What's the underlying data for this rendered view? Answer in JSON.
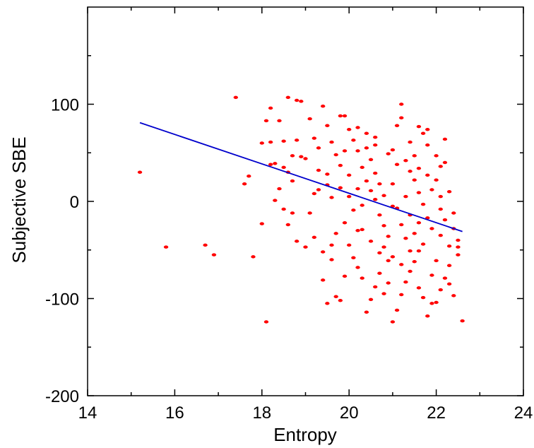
{
  "chart_data": {
    "type": "scatter",
    "title": "",
    "xlabel": "Entropy",
    "ylabel": "Subjective SBE",
    "xlim": [
      14,
      24
    ],
    "ylim": [
      -200,
      200
    ],
    "x_ticks": [
      14,
      16,
      18,
      20,
      22,
      24
    ],
    "y_ticks": [
      -200,
      -100,
      0,
      100
    ],
    "grid": false,
    "legend": "none",
    "colors": {
      "points": "#ff0000",
      "fit_line": "#0000cc",
      "axes": "#000000"
    },
    "fit_line": {
      "x": [
        15.2,
        22.6
      ],
      "y": [
        81,
        -31
      ]
    },
    "points": [
      [
        15.2,
        30
      ],
      [
        15.8,
        -47
      ],
      [
        16.7,
        -45
      ],
      [
        16.9,
        -55
      ],
      [
        17.4,
        107
      ],
      [
        17.7,
        26
      ],
      [
        17.6,
        18
      ],
      [
        17.8,
        -57
      ],
      [
        18.0,
        60
      ],
      [
        18.1,
        -124
      ],
      [
        18.2,
        96
      ],
      [
        18.3,
        39
      ],
      [
        18.3,
        1
      ],
      [
        18.4,
        83
      ],
      [
        18.5,
        62
      ],
      [
        18.6,
        107
      ],
      [
        18.7,
        47
      ],
      [
        18.8,
        104
      ],
      [
        18.9,
        103
      ],
      [
        18.1,
        83
      ],
      [
        18.2,
        61
      ],
      [
        18.5,
        35
      ],
      [
        18.6,
        30
      ],
      [
        18.7,
        -12
      ],
      [
        18.6,
        -24
      ],
      [
        18.8,
        -41
      ],
      [
        18.9,
        46
      ],
      [
        18.4,
        13
      ],
      [
        18.2,
        38
      ],
      [
        18.0,
        -23
      ],
      [
        18.7,
        21
      ],
      [
        18.5,
        -8
      ],
      [
        19.0,
        44
      ],
      [
        19.1,
        85
      ],
      [
        19.2,
        65
      ],
      [
        19.3,
        32
      ],
      [
        19.4,
        98
      ],
      [
        19.5,
        78
      ],
      [
        19.6,
        61
      ],
      [
        19.7,
        48
      ],
      [
        19.8,
        88
      ],
      [
        19.9,
        52
      ],
      [
        19.1,
        -12
      ],
      [
        19.2,
        -37
      ],
      [
        19.4,
        -81
      ],
      [
        19.5,
        -105
      ],
      [
        19.6,
        -60
      ],
      [
        19.7,
        -98
      ],
      [
        19.8,
        -102
      ],
      [
        19.9,
        -77
      ],
      [
        19.3,
        12
      ],
      [
        19.5,
        28
      ],
      [
        19.6,
        4
      ],
      [
        19.8,
        14
      ],
      [
        19.9,
        -22
      ],
      [
        19.0,
        -47
      ],
      [
        19.4,
        -52
      ],
      [
        19.7,
        -33
      ],
      [
        19.2,
        8
      ],
      [
        19.8,
        37
      ],
      [
        20.0,
        74
      ],
      [
        20.1,
        63
      ],
      [
        20.2,
        52
      ],
      [
        20.3,
        35
      ],
      [
        20.4,
        21
      ],
      [
        20.5,
        11
      ],
      [
        20.6,
        2
      ],
      [
        20.7,
        -14
      ],
      [
        20.8,
        -25
      ],
      [
        20.9,
        -36
      ],
      [
        20.0,
        -45
      ],
      [
        20.1,
        -58
      ],
      [
        20.2,
        -68
      ],
      [
        20.3,
        -79
      ],
      [
        20.4,
        -114
      ],
      [
        20.5,
        -101
      ],
      [
        20.6,
        -88
      ],
      [
        20.7,
        -74
      ],
      [
        20.8,
        -95
      ],
      [
        20.9,
        -61
      ],
      [
        20.0,
        27
      ],
      [
        20.2,
        13
      ],
      [
        20.3,
        -4
      ],
      [
        20.4,
        55
      ],
      [
        20.5,
        43
      ],
      [
        20.6,
        29
      ],
      [
        20.7,
        18
      ],
      [
        20.8,
        6
      ],
      [
        20.9,
        49
      ],
      [
        20.1,
        -9
      ],
      [
        20.3,
        -29
      ],
      [
        20.5,
        -41
      ],
      [
        20.7,
        -53
      ],
      [
        20.9,
        -84
      ],
      [
        20.2,
        76
      ],
      [
        20.6,
        66
      ],
      [
        21.0,
        53
      ],
      [
        21.1,
        78
      ],
      [
        21.2,
        100
      ],
      [
        21.3,
        42
      ],
      [
        21.4,
        31
      ],
      [
        21.5,
        22
      ],
      [
        21.6,
        9
      ],
      [
        21.7,
        -3
      ],
      [
        21.8,
        -17
      ],
      [
        21.9,
        -28
      ],
      [
        21.0,
        -124
      ],
      [
        21.1,
        -112
      ],
      [
        21.2,
        -96
      ],
      [
        21.3,
        -83
      ],
      [
        21.4,
        -72
      ],
      [
        21.5,
        -62
      ],
      [
        21.6,
        -51
      ],
      [
        21.7,
        -44
      ],
      [
        21.8,
        -118
      ],
      [
        21.9,
        -105
      ],
      [
        21.0,
        18
      ],
      [
        21.1,
        -7
      ],
      [
        21.2,
        -24
      ],
      [
        21.3,
        -38
      ],
      [
        21.4,
        61
      ],
      [
        21.5,
        47
      ],
      [
        21.6,
        34
      ],
      [
        21.7,
        70
      ],
      [
        21.8,
        58
      ],
      [
        21.9,
        12
      ],
      [
        21.0,
        -57
      ],
      [
        21.2,
        -65
      ],
      [
        21.4,
        -14
      ],
      [
        21.6,
        -89
      ],
      [
        21.8,
        27
      ],
      [
        21.1,
        38
      ],
      [
        21.3,
        5
      ],
      [
        21.5,
        -33
      ],
      [
        21.7,
        -99
      ],
      [
        21.9,
        -76
      ],
      [
        22.0,
        47
      ],
      [
        22.1,
        36
      ],
      [
        22.2,
        64
      ],
      [
        22.3,
        10
      ],
      [
        22.4,
        -28
      ],
      [
        22.5,
        -40
      ],
      [
        22.0,
        -104
      ],
      [
        22.1,
        -91
      ],
      [
        22.2,
        -79
      ],
      [
        22.3,
        -66
      ],
      [
        22.4,
        -97
      ],
      [
        22.5,
        -55
      ],
      [
        22.6,
        -123
      ],
      [
        22.0,
        22
      ],
      [
        22.1,
        -8
      ],
      [
        22.2,
        -19
      ],
      [
        22.3,
        -46
      ],
      [
        22.0,
        -61
      ],
      [
        22.1,
        5
      ],
      [
        22.2,
        40
      ],
      [
        22.4,
        -12
      ],
      [
        22.3,
        -85
      ],
      [
        22.1,
        -35
      ],
      [
        22.5,
        -47
      ],
      [
        21.2,
        86
      ],
      [
        21.6,
        77
      ],
      [
        19.9,
        88
      ],
      [
        20.4,
        70
      ],
      [
        18.8,
        63
      ],
      [
        19.3,
        55
      ],
      [
        21.8,
        74
      ],
      [
        20.6,
        58
      ],
      [
        19.6,
        -45
      ],
      [
        20.8,
        -47
      ],
      [
        21.4,
        -51
      ],
      [
        20.2,
        -30
      ],
      [
        21.0,
        -5
      ],
      [
        21.6,
        -22
      ],
      [
        20.0,
        5
      ],
      [
        19.5,
        17
      ]
    ]
  }
}
